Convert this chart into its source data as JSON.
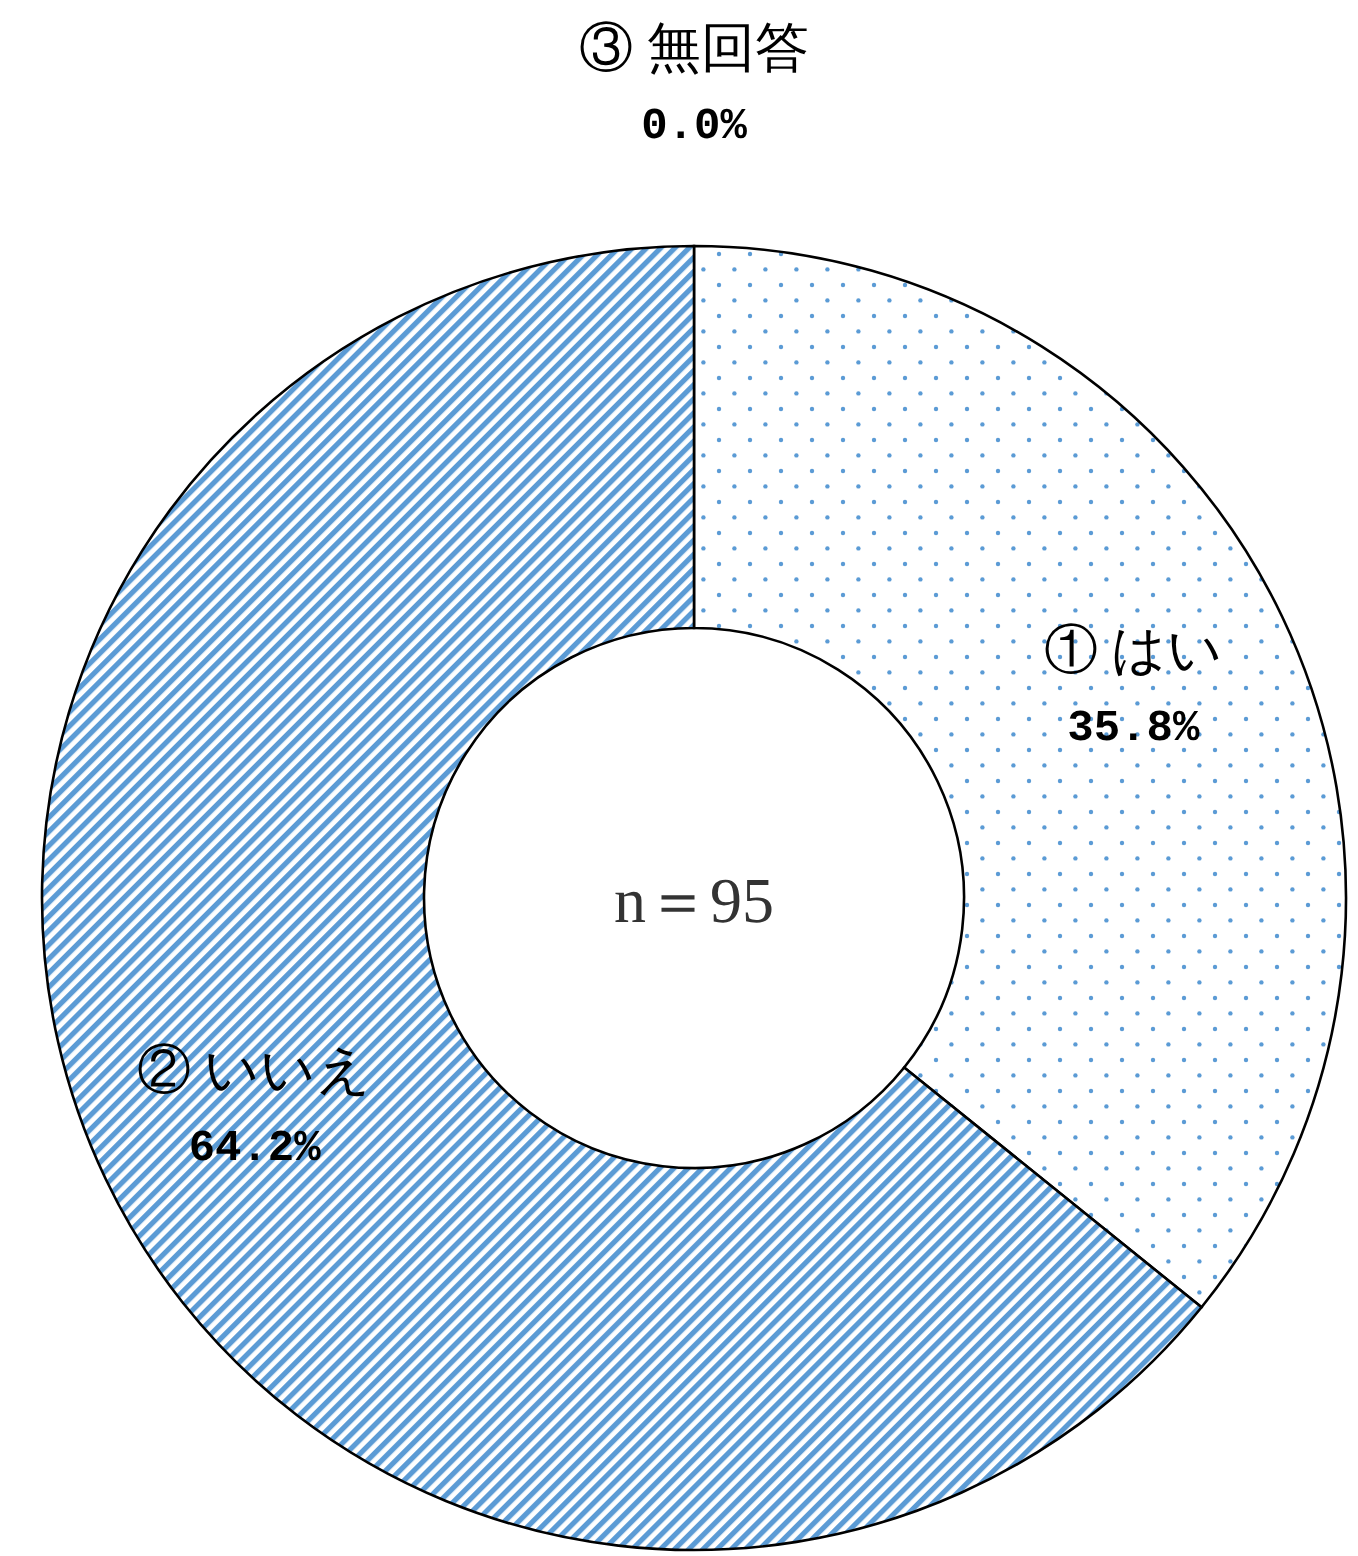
{
  "chart_data": {
    "type": "donut",
    "categories": [
      "① はい",
      "② いいえ",
      "③ 無回答"
    ],
    "values": [
      35.8,
      64.2,
      0.0
    ],
    "value_labels": [
      "35.8%",
      "64.2%",
      "0.0%"
    ],
    "colors": [
      "#5b9bd5",
      "#5b9bd5",
      "#5b9bd5"
    ],
    "annotations": [
      "n＝95"
    ],
    "legend": false
  }
}
